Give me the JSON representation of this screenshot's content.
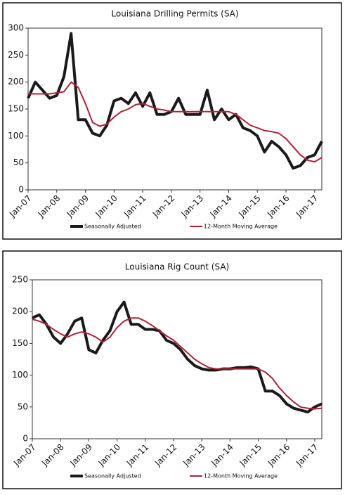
{
  "chart_data": [
    {
      "type": "line",
      "title": "Louisiana Drilling Permits (SA)",
      "x": [
        2007,
        2007.25,
        2007.5,
        2007.75,
        2008,
        2008.25,
        2008.5,
        2008.75,
        2009,
        2009.25,
        2009.5,
        2009.75,
        2010,
        2010.25,
        2010.5,
        2010.75,
        2011,
        2011.25,
        2011.5,
        2011.75,
        2012,
        2012.25,
        2012.5,
        2012.75,
        2013,
        2013.25,
        2013.5,
        2013.75,
        2014,
        2014.25,
        2014.5,
        2014.75,
        2015,
        2015.25,
        2015.5,
        2015.75,
        2016,
        2016.25,
        2016.5,
        2016.75,
        2017,
        2017.25
      ],
      "series": [
        {
          "name": "Seasonally Adjusted",
          "color": "#1a1a1a",
          "values": [
            170,
            200,
            185,
            170,
            175,
            210,
            290,
            130,
            130,
            105,
            100,
            120,
            165,
            170,
            160,
            180,
            155,
            180,
            140,
            140,
            145,
            170,
            140,
            140,
            140,
            185,
            130,
            150,
            130,
            140,
            115,
            110,
            100,
            70,
            90,
            80,
            65,
            40,
            45,
            60,
            65,
            90
          ]
        },
        {
          "name": "12-Month Moving Average",
          "color": "#b22234",
          "values": [
            178,
            178,
            178,
            178,
            180,
            182,
            200,
            190,
            160,
            125,
            118,
            122,
            135,
            145,
            150,
            158,
            160,
            155,
            150,
            148,
            145,
            145,
            145,
            145,
            145,
            145,
            145,
            145,
            145,
            140,
            130,
            120,
            115,
            110,
            108,
            105,
            95,
            80,
            65,
            55,
            52,
            60
          ]
        }
      ],
      "xlim": [
        2007,
        2017.25
      ],
      "xticks": [
        {
          "value": 2007,
          "label": "Jan-07"
        },
        {
          "value": 2008,
          "label": "Jan-08"
        },
        {
          "value": 2009,
          "label": "Jan-09"
        },
        {
          "value": 2010,
          "label": "Jan-10"
        },
        {
          "value": 2011,
          "label": "Jan-11"
        },
        {
          "value": 2012,
          "label": "Jan-12"
        },
        {
          "value": 2013,
          "label": "Jan-13"
        },
        {
          "value": 2014,
          "label": "Jan-14"
        },
        {
          "value": 2015,
          "label": "Jan-15"
        },
        {
          "value": 2016,
          "label": "Jan-16"
        },
        {
          "value": 2017,
          "label": "Jan-17"
        }
      ],
      "ylim": [
        0,
        300
      ],
      "yticks": [
        0,
        50,
        100,
        150,
        200,
        250,
        300
      ]
    },
    {
      "type": "line",
      "title": "Louisiana Rig Count (SA)",
      "x": [
        2007,
        2007.25,
        2007.5,
        2007.75,
        2008,
        2008.25,
        2008.5,
        2008.75,
        2009,
        2009.25,
        2009.5,
        2009.75,
        2010,
        2010.25,
        2010.5,
        2010.75,
        2011,
        2011.25,
        2011.5,
        2011.75,
        2012,
        2012.25,
        2012.5,
        2012.75,
        2013,
        2013.25,
        2013.5,
        2013.75,
        2014,
        2014.25,
        2014.5,
        2014.75,
        2015,
        2015.25,
        2015.5,
        2015.75,
        2016,
        2016.25,
        2016.5,
        2016.75,
        2017,
        2017.25
      ],
      "series": [
        {
          "name": "Seasonally Adjusted",
          "color": "#1a1a1a",
          "values": [
            190,
            195,
            180,
            160,
            150,
            165,
            185,
            190,
            140,
            135,
            155,
            170,
            200,
            215,
            180,
            180,
            172,
            172,
            170,
            155,
            150,
            140,
            125,
            115,
            110,
            108,
            108,
            110,
            110,
            112,
            112,
            113,
            110,
            75,
            75,
            68,
            55,
            48,
            45,
            42,
            50,
            55
          ]
        },
        {
          "name": "12-Month Moving Average",
          "color": "#b22234",
          "values": [
            188,
            185,
            180,
            172,
            165,
            160,
            165,
            168,
            165,
            160,
            152,
            160,
            175,
            185,
            190,
            190,
            185,
            178,
            170,
            162,
            155,
            145,
            135,
            125,
            118,
            112,
            110,
            110,
            110,
            110,
            110,
            110,
            110,
            105,
            95,
            80,
            68,
            58,
            50,
            48,
            47,
            48
          ]
        }
      ],
      "xlim": [
        2007,
        2017.25
      ],
      "xticks": [
        {
          "value": 2007,
          "label": "Jan-07"
        },
        {
          "value": 2008,
          "label": "Jan-08"
        },
        {
          "value": 2009,
          "label": "Jan-09"
        },
        {
          "value": 2010,
          "label": "Jan-10"
        },
        {
          "value": 2011,
          "label": "Jan-11"
        },
        {
          "value": 2012,
          "label": "Jan-12"
        },
        {
          "value": 2013,
          "label": "Jan-13"
        },
        {
          "value": 2014,
          "label": "Jan-14"
        },
        {
          "value": 2015,
          "label": "Jan-15"
        },
        {
          "value": 2016,
          "label": "Jan-16"
        },
        {
          "value": 2017,
          "label": "Jan-17"
        }
      ],
      "ylim": [
        0,
        250
      ],
      "yticks": [
        0,
        50,
        100,
        150,
        200,
        250
      ]
    }
  ]
}
